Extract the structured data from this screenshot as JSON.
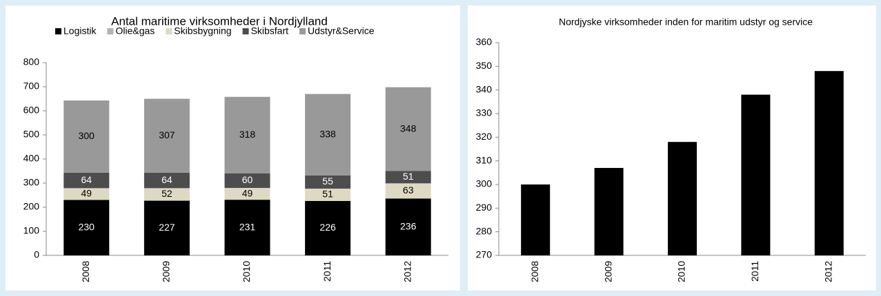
{
  "chart_data": [
    {
      "type": "stacked_bar",
      "title": "Antal maritime virksomheder i Nordjylland",
      "categories": [
        "2008",
        "2009",
        "2010",
        "2011",
        "2012"
      ],
      "series": [
        {
          "name": "Logistik",
          "color": "#000000",
          "label_color": "#ffffff",
          "show_labels": true,
          "values": [
            230,
            227,
            231,
            226,
            236
          ]
        },
        {
          "name": "Olie&gas",
          "color": "#b3b3b3",
          "label_color": "#000000",
          "show_labels": false,
          "values": [
            0,
            0,
            0,
            0,
            0
          ]
        },
        {
          "name": "Skibsbygning",
          "color": "#ddd9c3",
          "label_color": "#000000",
          "show_labels": true,
          "values": [
            49,
            52,
            49,
            51,
            63
          ]
        },
        {
          "name": "Skibsfart",
          "color": "#4d4d4d",
          "label_color": "#ffffff",
          "show_labels": true,
          "values": [
            64,
            64,
            60,
            55,
            51
          ]
        },
        {
          "name": "Udstyr&Service",
          "color": "#999999",
          "label_color": "#000000",
          "show_labels": true,
          "values": [
            300,
            307,
            318,
            338,
            348
          ]
        }
      ],
      "ylim": [
        0,
        800
      ],
      "yticks": [
        0,
        100,
        200,
        300,
        400,
        500,
        600,
        700,
        800
      ],
      "legend": "top",
      "grid": false
    },
    {
      "type": "bar",
      "title": "Nordjyske virksomheder inden for maritim udstyr og service",
      "categories": [
        "2008",
        "2009",
        "2010",
        "2011",
        "2012"
      ],
      "values": [
        300,
        307,
        318,
        338,
        348
      ],
      "color": "#000000",
      "ylim": [
        270,
        360
      ],
      "yticks": [
        270,
        280,
        290,
        300,
        310,
        320,
        330,
        340,
        350,
        360
      ],
      "grid": false
    }
  ]
}
